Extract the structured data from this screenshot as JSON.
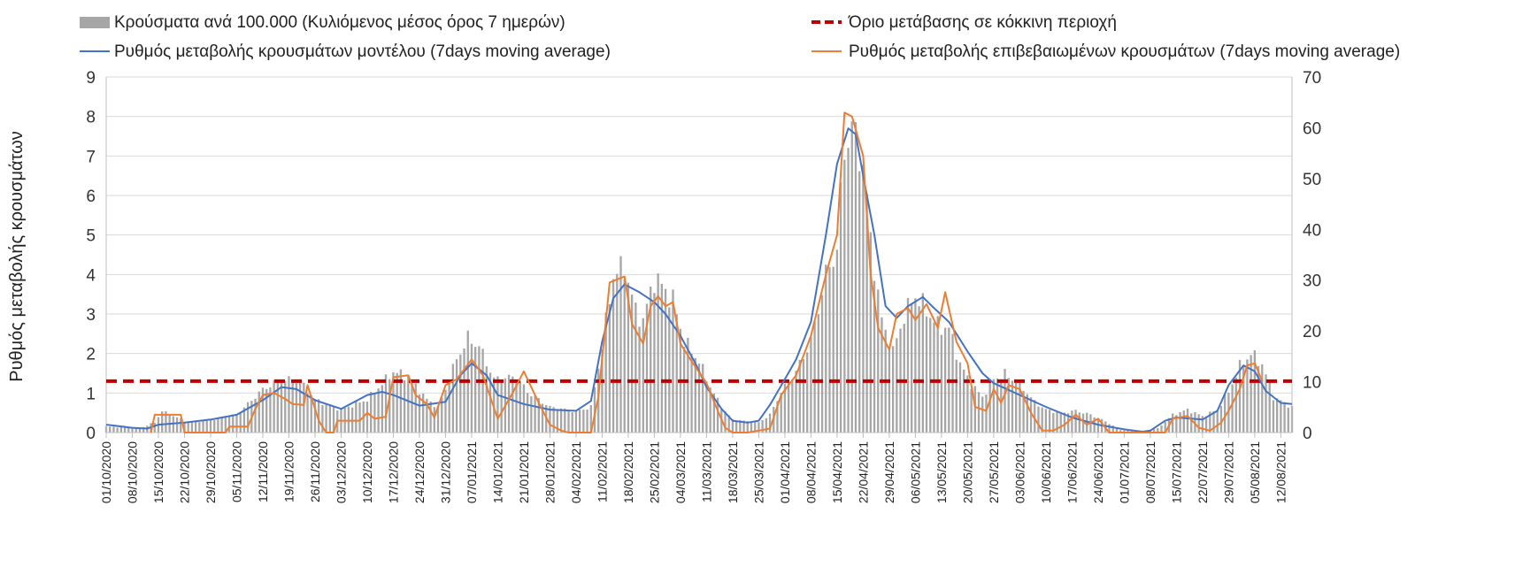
{
  "chart_data": {
    "type": "bar+line",
    "legend": [
      {
        "key": "bars",
        "label": "Κρούσματα ανά 100.000 (Κυλιόμενος μέσος όρος 7 ημερών)",
        "color": "#a6a6a6"
      },
      {
        "key": "threshold",
        "label": "Όριο μετάβασης σε κόκκινη περιοχή",
        "color": "#c00000"
      },
      {
        "key": "model",
        "label": "Ρυθμός μεταβολής κρουσμάτων μοντέλου (7days moving average)",
        "color": "#4472c4"
      },
      {
        "key": "confirmed",
        "label": "Ρυθμός μεταβολής επιβεβαιωμένων κρουσμάτων (7days moving average)",
        "color": "#ed7d31"
      }
    ],
    "ylabel": "Ρυθμός μεταβολής κρουσμάτων",
    "ylim_left": [
      0,
      9
    ],
    "ylim_right": [
      0,
      70
    ],
    "yticks_left": [
      "0",
      "1",
      "2",
      "3",
      "4",
      "5",
      "6",
      "7",
      "8",
      "9"
    ],
    "yticks_right": [
      "0",
      "10",
      "20",
      "30",
      "40",
      "50",
      "60",
      "70"
    ],
    "grid": true,
    "legend_position": "top",
    "start_date": "01/10/2020",
    "end_date": "15/08/2021",
    "x_tick_labels": [
      "01/10/2020",
      "08/10/2020",
      "15/10/2020",
      "22/10/2020",
      "29/10/2020",
      "05/11/2020",
      "12/11/2020",
      "19/11/2020",
      "26/11/2020",
      "03/12/2020",
      "10/12/2020",
      "17/12/2020",
      "24/12/2020",
      "31/12/2020",
      "07/01/2021",
      "14/01/2021",
      "21/01/2021",
      "28/01/2021",
      "04/02/2021",
      "11/02/2021",
      "18/02/2021",
      "25/02/2021",
      "04/03/2021",
      "11/03/2021",
      "18/03/2021",
      "25/03/2021",
      "01/04/2021",
      "08/04/2021",
      "15/04/2021",
      "22/04/2021",
      "29/04/2021",
      "06/05/2021",
      "13/05/2021",
      "20/05/2021",
      "27/05/2021",
      "03/06/2021",
      "10/06/2021",
      "17/06/2021",
      "24/06/2021",
      "01/07/2021",
      "08/07/2021",
      "15/07/2021",
      "22/07/2021",
      "29/07/2021",
      "05/08/2021",
      "12/08/2021"
    ],
    "threshold_value": 1.3,
    "model_series": [
      [
        "01/10/2020",
        0.2
      ],
      [
        "08/10/2020",
        0.12
      ],
      [
        "12/10/2020",
        0.1
      ],
      [
        "15/10/2020",
        0.2
      ],
      [
        "22/10/2020",
        0.25
      ],
      [
        "29/10/2020",
        0.33
      ],
      [
        "05/11/2020",
        0.45
      ],
      [
        "12/11/2020",
        0.82
      ],
      [
        "17/11/2020",
        1.15
      ],
      [
        "21/11/2020",
        1.1
      ],
      [
        "26/11/2020",
        0.82
      ],
      [
        "03/12/2020",
        0.6
      ],
      [
        "10/12/2020",
        0.95
      ],
      [
        "14/12/2020",
        1.03
      ],
      [
        "17/12/2020",
        0.95
      ],
      [
        "24/12/2020",
        0.68
      ],
      [
        "31/12/2020",
        0.78
      ],
      [
        "04/01/2021",
        1.45
      ],
      [
        "07/01/2021",
        1.75
      ],
      [
        "11/01/2021",
        1.45
      ],
      [
        "14/01/2021",
        0.95
      ],
      [
        "21/01/2021",
        0.72
      ],
      [
        "28/01/2021",
        0.58
      ],
      [
        "04/02/2021",
        0.55
      ],
      [
        "08/02/2021",
        0.8
      ],
      [
        "11/02/2021",
        2.3
      ],
      [
        "14/02/2021",
        3.4
      ],
      [
        "17/02/2021",
        3.75
      ],
      [
        "21/02/2021",
        3.55
      ],
      [
        "25/02/2021",
        3.3
      ],
      [
        "28/02/2021",
        3.0
      ],
      [
        "04/03/2021",
        2.45
      ],
      [
        "08/03/2021",
        1.75
      ],
      [
        "11/03/2021",
        1.15
      ],
      [
        "15/03/2021",
        0.6
      ],
      [
        "18/03/2021",
        0.3
      ],
      [
        "22/03/2021",
        0.25
      ],
      [
        "25/03/2021",
        0.3
      ],
      [
        "28/03/2021",
        0.7
      ],
      [
        "01/04/2021",
        1.35
      ],
      [
        "04/04/2021",
        1.85
      ],
      [
        "08/04/2021",
        2.8
      ],
      [
        "12/04/2021",
        5.0
      ],
      [
        "15/04/2021",
        6.8
      ],
      [
        "18/04/2021",
        7.7
      ],
      [
        "20/04/2021",
        7.55
      ],
      [
        "22/04/2021",
        6.5
      ],
      [
        "25/04/2021",
        5.0
      ],
      [
        "28/04/2021",
        3.2
      ],
      [
        "01/05/2021",
        2.9
      ],
      [
        "04/05/2021",
        3.2
      ],
      [
        "08/05/2021",
        3.43
      ],
      [
        "11/05/2021",
        3.15
      ],
      [
        "15/05/2021",
        2.8
      ],
      [
        "20/05/2021",
        2.05
      ],
      [
        "24/05/2021",
        1.5
      ],
      [
        "27/05/2021",
        1.25
      ],
      [
        "03/06/2021",
        0.95
      ],
      [
        "10/06/2021",
        0.65
      ],
      [
        "17/06/2021",
        0.38
      ],
      [
        "24/06/2021",
        0.2
      ],
      [
        "01/07/2021",
        0.08
      ],
      [
        "06/07/2021",
        0.02
      ],
      [
        "08/07/2021",
        0.05
      ],
      [
        "12/07/2021",
        0.3
      ],
      [
        "15/07/2021",
        0.38
      ],
      [
        "22/07/2021",
        0.33
      ],
      [
        "26/07/2021",
        0.55
      ],
      [
        "29/07/2021",
        1.2
      ],
      [
        "02/08/2021",
        1.7
      ],
      [
        "05/08/2021",
        1.55
      ],
      [
        "08/08/2021",
        1.05
      ],
      [
        "12/08/2021",
        0.75
      ],
      [
        "15/08/2021",
        0.72
      ]
    ],
    "confirmed_series": [
      [
        "13/10/2020",
        0.0
      ],
      [
        "14/10/2020",
        0.45
      ],
      [
        "21/10/2020",
        0.45
      ],
      [
        "22/10/2020",
        0.0
      ],
      [
        "02/11/2020",
        0.0
      ],
      [
        "03/11/2020",
        0.15
      ],
      [
        "08/11/2020",
        0.15
      ],
      [
        "10/11/2020",
        0.6
      ],
      [
        "12/11/2020",
        0.95
      ],
      [
        "15/11/2020",
        1.0
      ],
      [
        "18/11/2020",
        0.85
      ],
      [
        "20/11/2020",
        0.72
      ],
      [
        "23/11/2020",
        0.7
      ],
      [
        "24/11/2020",
        1.2
      ],
      [
        "27/11/2020",
        0.3
      ],
      [
        "29/11/2020",
        0.0
      ],
      [
        "01/12/2020",
        0.0
      ],
      [
        "02/12/2020",
        0.3
      ],
      [
        "08/12/2020",
        0.3
      ],
      [
        "10/12/2020",
        0.5
      ],
      [
        "12/12/2020",
        0.35
      ],
      [
        "15/12/2020",
        0.4
      ],
      [
        "17/12/2020",
        1.4
      ],
      [
        "21/12/2020",
        1.45
      ],
      [
        "23/12/2020",
        0.95
      ],
      [
        "26/12/2020",
        0.72
      ],
      [
        "28/12/2020",
        0.38
      ],
      [
        "31/12/2020",
        1.2
      ],
      [
        "03/01/2021",
        1.35
      ],
      [
        "07/01/2021",
        1.85
      ],
      [
        "10/01/2021",
        1.45
      ],
      [
        "14/01/2021",
        0.35
      ],
      [
        "18/01/2021",
        1.0
      ],
      [
        "21/01/2021",
        1.55
      ],
      [
        "25/01/2021",
        0.75
      ],
      [
        "28/01/2021",
        0.2
      ],
      [
        "31/01/2021",
        0.05
      ],
      [
        "02/02/2021",
        0.0
      ],
      [
        "08/02/2021",
        0.0
      ],
      [
        "10/02/2021",
        0.9
      ],
      [
        "13/02/2021",
        3.8
      ],
      [
        "17/02/2021",
        3.95
      ],
      [
        "19/02/2021",
        2.75
      ],
      [
        "22/02/2021",
        2.25
      ],
      [
        "24/02/2021",
        3.2
      ],
      [
        "26/02/2021",
        3.45
      ],
      [
        "28/02/2021",
        3.2
      ],
      [
        "02/03/2021",
        3.3
      ],
      [
        "04/03/2021",
        2.25
      ],
      [
        "07/03/2021",
        1.8
      ],
      [
        "11/03/2021",
        1.25
      ],
      [
        "14/03/2021",
        0.55
      ],
      [
        "16/03/2021",
        0.12
      ],
      [
        "18/03/2021",
        0.0
      ],
      [
        "22/03/2021",
        0.0
      ],
      [
        "25/03/2021",
        0.05
      ],
      [
        "28/03/2021",
        0.1
      ],
      [
        "31/03/2021",
        0.95
      ],
      [
        "04/04/2021",
        1.45
      ],
      [
        "08/04/2021",
        2.45
      ],
      [
        "12/04/2021",
        4.0
      ],
      [
        "15/04/2021",
        5.0
      ],
      [
        "17/04/2021",
        8.1
      ],
      [
        "19/04/2021",
        8.0
      ],
      [
        "22/04/2021",
        7.0
      ],
      [
        "24/04/2021",
        4.0
      ],
      [
        "26/04/2021",
        2.65
      ],
      [
        "29/04/2021",
        2.1
      ],
      [
        "01/05/2021",
        3.0
      ],
      [
        "04/05/2021",
        3.15
      ],
      [
        "06/05/2021",
        2.85
      ],
      [
        "09/05/2021",
        3.25
      ],
      [
        "12/05/2021",
        2.65
      ],
      [
        "14/05/2021",
        3.55
      ],
      [
        "17/05/2021",
        2.3
      ],
      [
        "20/05/2021",
        1.75
      ],
      [
        "22/05/2021",
        0.65
      ],
      [
        "25/05/2021",
        0.55
      ],
      [
        "27/05/2021",
        1.1
      ],
      [
        "29/05/2021",
        0.75
      ],
      [
        "31/05/2021",
        1.2
      ],
      [
        "03/06/2021",
        1.1
      ],
      [
        "06/06/2021",
        0.5
      ],
      [
        "09/06/2021",
        0.05
      ],
      [
        "12/06/2021",
        0.05
      ],
      [
        "15/06/2021",
        0.2
      ],
      [
        "18/06/2021",
        0.45
      ],
      [
        "21/06/2021",
        0.2
      ],
      [
        "24/06/2021",
        0.35
      ],
      [
        "27/06/2021",
        0.0
      ],
      [
        "12/07/2021",
        0.0
      ],
      [
        "14/07/2021",
        0.35
      ],
      [
        "18/07/2021",
        0.42
      ],
      [
        "21/07/2021",
        0.12
      ],
      [
        "24/07/2021",
        0.05
      ],
      [
        "27/07/2021",
        0.25
      ],
      [
        "29/07/2021",
        0.55
      ],
      [
        "01/08/2021",
        1.1
      ],
      [
        "03/08/2021",
        1.7
      ],
      [
        "05/08/2021",
        1.75
      ],
      [
        "07/08/2021",
        1.3
      ]
    ],
    "bars_anchors": [
      [
        "01/10/2020",
        1.2
      ],
      [
        "10/10/2020",
        0.8
      ],
      [
        "14/10/2020",
        2.0
      ],
      [
        "16/10/2020",
        4.2
      ],
      [
        "23/10/2020",
        2.0
      ],
      [
        "29/10/2020",
        2.5
      ],
      [
        "05/11/2020",
        3.5
      ],
      [
        "12/11/2020",
        8.5
      ],
      [
        "17/11/2020",
        10.5
      ],
      [
        "22/11/2020",
        10.0
      ],
      [
        "26/11/2020",
        6.5
      ],
      [
        "03/12/2020",
        4.5
      ],
      [
        "10/12/2020",
        6.5
      ],
      [
        "17/12/2020",
        12.0
      ],
      [
        "21/12/2020",
        11.0
      ],
      [
        "26/12/2020",
        6.5
      ],
      [
        "29/12/2020",
        5.0
      ],
      [
        "31/12/2020",
        8.5
      ],
      [
        "03/01/2021",
        14.5
      ],
      [
        "06/01/2021",
        18.5
      ],
      [
        "09/01/2021",
        17.0
      ],
      [
        "13/01/2021",
        10.5
      ],
      [
        "19/01/2021",
        11.0
      ],
      [
        "22/01/2021",
        8.0
      ],
      [
        "28/01/2021",
        5.0
      ],
      [
        "04/02/2021",
        4.2
      ],
      [
        "08/02/2021",
        5.0
      ],
      [
        "11/02/2021",
        17.0
      ],
      [
        "14/02/2021",
        31.0
      ],
      [
        "17/02/2021",
        32.5
      ],
      [
        "20/02/2021",
        24.0
      ],
      [
        "22/02/2021",
        22.0
      ],
      [
        "25/02/2021",
        30.5
      ],
      [
        "28/02/2021",
        28.0
      ],
      [
        "02/03/2021",
        26.0
      ],
      [
        "05/03/2021",
        18.0
      ],
      [
        "09/03/2021",
        14.0
      ],
      [
        "12/03/2021",
        9.0
      ],
      [
        "15/03/2021",
        5.0
      ],
      [
        "18/03/2021",
        2.5
      ],
      [
        "25/03/2021",
        2.0
      ],
      [
        "28/03/2021",
        3.5
      ],
      [
        "31/03/2021",
        8.0
      ],
      [
        "04/04/2021",
        12.0
      ],
      [
        "08/04/2021",
        18.0
      ],
      [
        "12/04/2021",
        31.0
      ],
      [
        "15/04/2021",
        36.0
      ],
      [
        "17/04/2021",
        56.0
      ],
      [
        "19/04/2021",
        60.0
      ],
      [
        "22/04/2021",
        53.0
      ],
      [
        "24/04/2021",
        38.0
      ],
      [
        "27/04/2021",
        22.0
      ],
      [
        "30/04/2021",
        16.0
      ],
      [
        "03/05/2021",
        23.0
      ],
      [
        "06/05/2021",
        27.0
      ],
      [
        "09/05/2021",
        24.0
      ],
      [
        "12/05/2021",
        21.0
      ],
      [
        "15/05/2021",
        20.5
      ],
      [
        "18/05/2021",
        13.5
      ],
      [
        "21/05/2021",
        9.5
      ],
      [
        "24/05/2021",
        7.0
      ],
      [
        "27/05/2021",
        10.5
      ],
      [
        "30/05/2021",
        11.5
      ],
      [
        "03/06/2021",
        9.5
      ],
      [
        "07/06/2021",
        6.0
      ],
      [
        "10/06/2021",
        4.5
      ],
      [
        "14/06/2021",
        3.8
      ],
      [
        "18/06/2021",
        4.3
      ],
      [
        "22/06/2021",
        3.5
      ],
      [
        "26/06/2021",
        2.2
      ],
      [
        "30/06/2021",
        0.5
      ],
      [
        "05/07/2021",
        0.25
      ],
      [
        "10/07/2021",
        0.8
      ],
      [
        "14/07/2021",
        3.5
      ],
      [
        "18/07/2021",
        4.5
      ],
      [
        "22/07/2021",
        3.2
      ],
      [
        "26/07/2021",
        4.5
      ],
      [
        "29/07/2021",
        8.0
      ],
      [
        "01/08/2021",
        13.0
      ],
      [
        "04/08/2021",
        15.5
      ],
      [
        "07/08/2021",
        13.5
      ],
      [
        "10/08/2021",
        7.0
      ],
      [
        "15/08/2021",
        5.0
      ]
    ]
  }
}
